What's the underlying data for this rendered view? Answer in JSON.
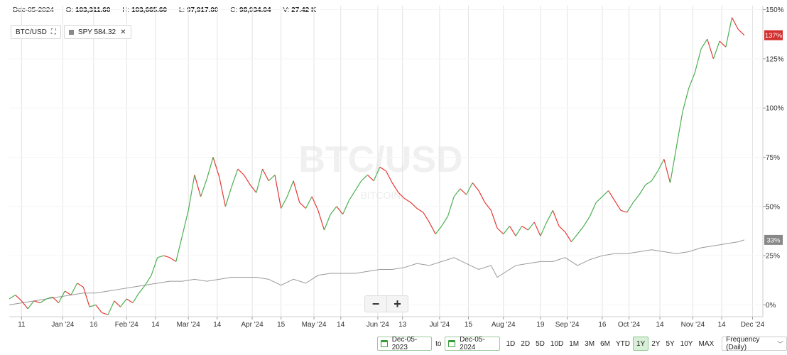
{
  "ohlc": {
    "date": "Dec-05-2024",
    "open_label": "O:",
    "open": "103,311.60",
    "high_label": "H:",
    "high": "103,665.60",
    "low_label": "L:",
    "low": "97,917.00",
    "close_label": "C:",
    "close": "98,934.04",
    "volume_label": "V:",
    "volume": "27.42 K"
  },
  "legend": {
    "primary": "BTC/USD",
    "compare": "SPY 584.32"
  },
  "watermark": {
    "symbol": "BTC/USD",
    "name": "BITCOIN"
  },
  "controls": {
    "from_date": "Dec-05-2023",
    "to_label": "to",
    "to_date": "Dec-05-2024",
    "ranges": [
      "1D",
      "2D",
      "5D",
      "10D",
      "1M",
      "3M",
      "6M",
      "YTD",
      "1Y",
      "2Y",
      "5Y",
      "10Y",
      "MAX"
    ],
    "active_range": "1Y",
    "frequency": "Frequency (Daily)"
  },
  "zoom": {
    "minus": "−",
    "plus": "+"
  },
  "colors": {
    "up": "#4caf50",
    "down": "#e53935",
    "spy": "#999999",
    "badge_btc": "#d32f2f",
    "badge_spy": "#888888"
  },
  "chart_data": {
    "type": "line",
    "yunit": "%",
    "ylim": [
      -6,
      152
    ],
    "y_ticks": [
      "150%",
      "125%",
      "100%",
      "75%",
      "50%",
      "25%",
      "0%"
    ],
    "y_tick_values": [
      150,
      125,
      100,
      75,
      50,
      25,
      0
    ],
    "x_ticks": [
      "11",
      "Jan '24",
      "16",
      "Feb '24",
      "14",
      "Mar '24",
      "14",
      "Apr '24",
      "15",
      "May '24",
      "14",
      "Jun '24",
      "13",
      "Jul '24",
      "15",
      "Aug '24",
      "19",
      "Sep '24",
      "16",
      "Oct '24",
      "14",
      "Nov '24",
      "14",
      "Dec '24"
    ],
    "x_tick_days": [
      6,
      26,
      41,
      57,
      71,
      87,
      101,
      118,
      132,
      148,
      161,
      179,
      191,
      209,
      223,
      240,
      258,
      271,
      288,
      301,
      316,
      332,
      346,
      361
    ],
    "x_range_days": [
      0,
      366
    ],
    "series": [
      {
        "name": "BTC/USD",
        "last_label": "137%",
        "points": [
          [
            0,
            3
          ],
          [
            3,
            5
          ],
          [
            6,
            2
          ],
          [
            9,
            -2
          ],
          [
            12,
            2
          ],
          [
            15,
            1
          ],
          [
            18,
            3
          ],
          [
            21,
            4
          ],
          [
            24,
            1
          ],
          [
            27,
            7
          ],
          [
            30,
            5
          ],
          [
            33,
            11
          ],
          [
            36,
            9
          ],
          [
            39,
            -1
          ],
          [
            42,
            0
          ],
          [
            45,
            -4
          ],
          [
            48,
            -5
          ],
          [
            51,
            2
          ],
          [
            54,
            -1
          ],
          [
            57,
            3
          ],
          [
            60,
            1
          ],
          [
            63,
            6
          ],
          [
            66,
            10
          ],
          [
            69,
            15
          ],
          [
            72,
            24
          ],
          [
            75,
            25
          ],
          [
            78,
            24
          ],
          [
            81,
            22
          ],
          [
            84,
            35
          ],
          [
            87,
            48
          ],
          [
            90,
            66
          ],
          [
            93,
            55
          ],
          [
            96,
            64
          ],
          [
            99,
            75
          ],
          [
            102,
            65
          ],
          [
            105,
            50
          ],
          [
            108,
            60
          ],
          [
            111,
            69
          ],
          [
            114,
            66
          ],
          [
            117,
            61
          ],
          [
            120,
            57
          ],
          [
            123,
            69
          ],
          [
            126,
            63
          ],
          [
            129,
            66
          ],
          [
            132,
            49
          ],
          [
            135,
            55
          ],
          [
            138,
            63
          ],
          [
            141,
            52
          ],
          [
            144,
            49
          ],
          [
            147,
            55
          ],
          [
            150,
            48
          ],
          [
            153,
            38
          ],
          [
            156,
            46
          ],
          [
            159,
            50
          ],
          [
            162,
            46
          ],
          [
            165,
            53
          ],
          [
            168,
            58
          ],
          [
            171,
            63
          ],
          [
            174,
            66
          ],
          [
            177,
            63
          ],
          [
            180,
            70
          ],
          [
            183,
            68
          ],
          [
            186,
            62
          ],
          [
            189,
            57
          ],
          [
            192,
            54
          ],
          [
            195,
            52
          ],
          [
            198,
            49
          ],
          [
            201,
            47
          ],
          [
            204,
            42
          ],
          [
            207,
            36
          ],
          [
            210,
            40
          ],
          [
            213,
            45
          ],
          [
            216,
            55
          ],
          [
            219,
            59
          ],
          [
            222,
            56
          ],
          [
            225,
            62
          ],
          [
            228,
            58
          ],
          [
            231,
            52
          ],
          [
            234,
            48
          ],
          [
            237,
            39
          ],
          [
            240,
            36
          ],
          [
            243,
            40
          ],
          [
            246,
            35
          ],
          [
            249,
            40
          ],
          [
            252,
            38
          ],
          [
            255,
            42
          ],
          [
            258,
            35
          ],
          [
            261,
            42
          ],
          [
            264,
            48
          ],
          [
            267,
            40
          ],
          [
            270,
            37
          ],
          [
            273,
            32
          ],
          [
            276,
            36
          ],
          [
            279,
            40
          ],
          [
            282,
            45
          ],
          [
            285,
            52
          ],
          [
            288,
            55
          ],
          [
            291,
            58
          ],
          [
            294,
            53
          ],
          [
            297,
            48
          ],
          [
            300,
            47
          ],
          [
            303,
            52
          ],
          [
            306,
            56
          ],
          [
            309,
            61
          ],
          [
            312,
            63
          ],
          [
            315,
            68
          ],
          [
            318,
            74
          ],
          [
            321,
            62
          ],
          [
            324,
            80
          ],
          [
            327,
            98
          ],
          [
            330,
            110
          ],
          [
            333,
            118
          ],
          [
            336,
            130
          ],
          [
            339,
            135
          ],
          [
            342,
            125
          ],
          [
            345,
            134
          ],
          [
            348,
            131
          ],
          [
            351,
            146
          ],
          [
            354,
            140
          ],
          [
            357,
            137
          ]
        ]
      },
      {
        "name": "SPY",
        "last_label": "33%",
        "points": [
          [
            0,
            0
          ],
          [
            6,
            1
          ],
          [
            12,
            2
          ],
          [
            18,
            3
          ],
          [
            24,
            4
          ],
          [
            30,
            5
          ],
          [
            36,
            6
          ],
          [
            42,
            6
          ],
          [
            48,
            7
          ],
          [
            54,
            8
          ],
          [
            60,
            9
          ],
          [
            66,
            10
          ],
          [
            72,
            11
          ],
          [
            78,
            12
          ],
          [
            84,
            12
          ],
          [
            90,
            13
          ],
          [
            96,
            12
          ],
          [
            102,
            13
          ],
          [
            108,
            14
          ],
          [
            114,
            14
          ],
          [
            120,
            14
          ],
          [
            126,
            13
          ],
          [
            132,
            10
          ],
          [
            138,
            13
          ],
          [
            144,
            11
          ],
          [
            150,
            15
          ],
          [
            156,
            16
          ],
          [
            162,
            16
          ],
          [
            168,
            16
          ],
          [
            174,
            17
          ],
          [
            180,
            18
          ],
          [
            186,
            18
          ],
          [
            192,
            19
          ],
          [
            198,
            21
          ],
          [
            204,
            20
          ],
          [
            210,
            22
          ],
          [
            216,
            24
          ],
          [
            222,
            21
          ],
          [
            228,
            18
          ],
          [
            234,
            20
          ],
          [
            237,
            14
          ],
          [
            240,
            16
          ],
          [
            246,
            20
          ],
          [
            252,
            21
          ],
          [
            258,
            22
          ],
          [
            264,
            22
          ],
          [
            270,
            24
          ],
          [
            276,
            20
          ],
          [
            282,
            23
          ],
          [
            288,
            25
          ],
          [
            294,
            26
          ],
          [
            300,
            26
          ],
          [
            306,
            27
          ],
          [
            312,
            28
          ],
          [
            318,
            27
          ],
          [
            324,
            26
          ],
          [
            330,
            27
          ],
          [
            336,
            29
          ],
          [
            342,
            30
          ],
          [
            348,
            31
          ],
          [
            354,
            32
          ],
          [
            357,
            33
          ]
        ]
      }
    ]
  }
}
